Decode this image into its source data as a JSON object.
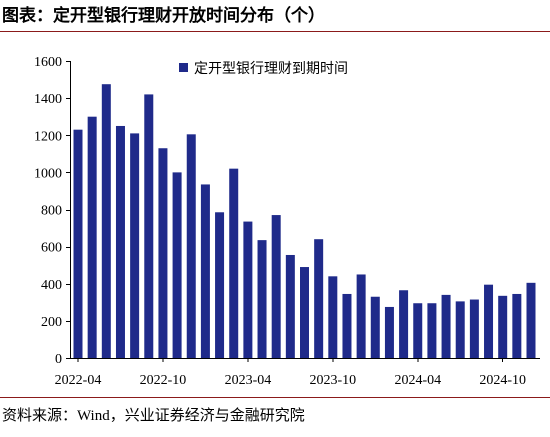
{
  "title": "图表：定开型银行理财开放时间分布（个）",
  "source": "资料来源：Wind，兴业证券经济与金融研究院",
  "colors": {
    "bar": "#1f2a8a",
    "rule": "#8b1a1a",
    "axis": "#000000"
  },
  "chart_data": {
    "type": "bar",
    "categories": [
      "2022-04",
      "2022-05",
      "2022-06",
      "2022-07",
      "2022-08",
      "2022-09",
      "2022-10",
      "2022-11",
      "2022-12",
      "2023-01",
      "2023-02",
      "2023-03",
      "2023-04",
      "2023-05",
      "2023-06",
      "2023-07",
      "2023-08",
      "2023-09",
      "2023-10",
      "2023-11",
      "2023-12",
      "2024-01",
      "2024-02",
      "2024-03",
      "2024-04",
      "2024-05",
      "2024-06",
      "2024-07",
      "2024-08",
      "2024-09",
      "2024-10",
      "2024-11",
      "2024-12"
    ],
    "series": [
      {
        "name": "定开型银行理财到期时间",
        "values": [
          1230,
          1300,
          1475,
          1250,
          1210,
          1420,
          1130,
          1000,
          1205,
          935,
          785,
          1020,
          735,
          635,
          770,
          555,
          490,
          640,
          440,
          345,
          450,
          330,
          275,
          365,
          295,
          295,
          340,
          305,
          315,
          395,
          335,
          345,
          405
        ]
      }
    ],
    "x_tick_labels": [
      "2022-04",
      "2022-10",
      "2023-04",
      "2023-10",
      "2024-04",
      "2024-10"
    ],
    "yticks": [
      0,
      200,
      400,
      600,
      800,
      1000,
      1200,
      1400,
      1600
    ],
    "ylim": [
      0,
      1600
    ],
    "grid": false,
    "legend_position": "top-center"
  }
}
